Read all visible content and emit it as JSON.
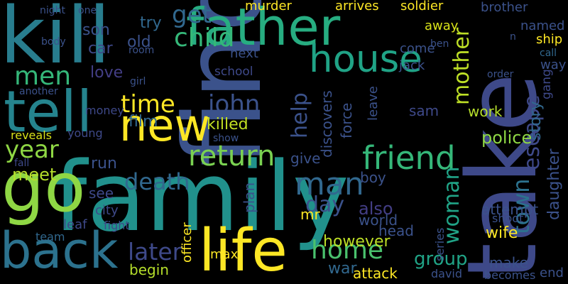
{
  "words": [
    {
      "text": "find",
      "color": "#3b528b"
    },
    {
      "text": "family",
      "color": "#21918c"
    },
    {
      "text": "take",
      "color": "#3e4989"
    },
    {
      "text": "kill",
      "color": "#287d8e"
    },
    {
      "text": "father",
      "color": "#27ad81"
    },
    {
      "text": "tell",
      "color": "#25848e"
    },
    {
      "text": "go",
      "color": "#8fd744"
    },
    {
      "text": "back",
      "color": "#2c728e"
    },
    {
      "text": "life",
      "color": "#fde725"
    },
    {
      "text": "new",
      "color": "#fde725"
    },
    {
      "text": "house",
      "color": "#20a386"
    },
    {
      "text": "child",
      "color": "#35b779"
    },
    {
      "text": "get",
      "color": "#31688e"
    },
    {
      "text": "men",
      "color": "#35b779"
    },
    {
      "text": "friend",
      "color": "#35b779"
    },
    {
      "text": "man",
      "color": "#31688e"
    },
    {
      "text": "home",
      "color": "#4ac16d"
    },
    {
      "text": "return",
      "color": "#7ad151"
    },
    {
      "text": "time",
      "color": "#fde725"
    },
    {
      "text": "john",
      "color": "#3b528b"
    },
    {
      "text": "later",
      "color": "#3e4989"
    },
    {
      "text": "year",
      "color": "#8fd744"
    },
    {
      "text": "death",
      "color": "#31688e"
    },
    {
      "text": "day",
      "color": "#3b528b"
    },
    {
      "text": "woman",
      "color": "#20a386"
    },
    {
      "text": "town",
      "color": "#2c728e"
    },
    {
      "text": "escape",
      "color": "#3e4989"
    },
    {
      "text": "mother",
      "color": "#bddf26"
    },
    {
      "text": "group",
      "color": "#20a386"
    },
    {
      "text": "police",
      "color": "#8fd744"
    },
    {
      "text": "daughter",
      "color": "#3b528b"
    },
    {
      "text": "story",
      "color": "#31688e"
    },
    {
      "text": "attack",
      "color": "#fde725"
    },
    {
      "text": "war",
      "color": "#31688e"
    },
    {
      "text": "also",
      "color": "#433e85"
    },
    {
      "text": "however",
      "color": "#bddf26"
    },
    {
      "text": "film",
      "color": "#31688e"
    },
    {
      "text": "killed",
      "color": "#c2df23"
    },
    {
      "text": "help",
      "color": "#3b528b"
    },
    {
      "text": "meet",
      "color": "#b5de2b"
    },
    {
      "text": "see",
      "color": "#3e4989"
    },
    {
      "text": "run",
      "color": "#3b528b"
    },
    {
      "text": "love",
      "color": "#433e85"
    },
    {
      "text": "son",
      "color": "#3b528b"
    },
    {
      "text": "car",
      "color": "#3e4989"
    },
    {
      "text": "old",
      "color": "#3b528b"
    },
    {
      "text": "try",
      "color": "#31688e"
    },
    {
      "text": "murder",
      "color": "#fde725"
    },
    {
      "text": "arrives",
      "color": "#fde725"
    },
    {
      "text": "soldier",
      "color": "#fde725"
    },
    {
      "text": "brother",
      "color": "#3b528b"
    },
    {
      "text": "named",
      "color": "#3b528b"
    },
    {
      "text": "away",
      "color": "#d8e219"
    },
    {
      "text": "ship",
      "color": "#fde725"
    },
    {
      "text": "call",
      "color": "#31688e"
    },
    {
      "text": "way",
      "color": "#3b528b"
    },
    {
      "text": "gang",
      "color": "#3e4989"
    },
    {
      "text": "come",
      "color": "#3b528b"
    },
    {
      "text": "jack",
      "color": "#3b528b"
    },
    {
      "text": "school",
      "color": "#3e4989"
    },
    {
      "text": "next",
      "color": "#3b528b"
    },
    {
      "text": "leave",
      "color": "#3b528b"
    },
    {
      "text": "sam",
      "color": "#3e4989"
    },
    {
      "text": "work",
      "color": "#b5de2b"
    },
    {
      "text": "force",
      "color": "#3b528b"
    },
    {
      "text": "discovers",
      "color": "#3b528b"
    },
    {
      "text": "give",
      "color": "#3b528b"
    },
    {
      "text": "plan",
      "color": "#3b528b"
    },
    {
      "text": "boy",
      "color": "#3b528b"
    },
    {
      "text": "world",
      "color": "#3b528b"
    },
    {
      "text": "head",
      "color": "#3b528b"
    },
    {
      "text": "attempt",
      "color": "#3b528b"
    },
    {
      "text": "wife",
      "color": "#fde725"
    },
    {
      "text": "make",
      "color": "#3b528b"
    },
    {
      "text": "shoot",
      "color": "#3b528b"
    },
    {
      "text": "series",
      "color": "#3b528b"
    },
    {
      "text": "david",
      "color": "#3b528b"
    },
    {
      "text": "becomes",
      "color": "#3b528b"
    },
    {
      "text": "end",
      "color": "#3b528b"
    },
    {
      "text": "begin",
      "color": "#b5de2b"
    },
    {
      "text": "max",
      "color": "#fde725"
    },
    {
      "text": "officer",
      "color": "#fde725"
    },
    {
      "text": "mr",
      "color": "#fde725"
    },
    {
      "text": "city",
      "color": "#3e4989"
    },
    {
      "text": "fight",
      "color": "#3e4989"
    },
    {
      "text": "leaf",
      "color": "#3e4989"
    },
    {
      "text": "team",
      "color": "#31688e"
    },
    {
      "text": "fall",
      "color": "#3e4989"
    },
    {
      "text": "reveals",
      "color": "#d8e219"
    },
    {
      "text": "young",
      "color": "#3e4989"
    },
    {
      "text": "money",
      "color": "#3e4989"
    },
    {
      "text": "body",
      "color": "#3b528b"
    },
    {
      "text": "night",
      "color": "#3b528b"
    },
    {
      "text": "one",
      "color": "#3b528b"
    },
    {
      "text": "room",
      "color": "#3b528b"
    },
    {
      "text": "girl",
      "color": "#3b528b"
    },
    {
      "text": "another",
      "color": "#3b528b"
    },
    {
      "text": "order",
      "color": "#3b528b"
    },
    {
      "text": "show",
      "color": "#3b528b"
    },
    {
      "text": "ben",
      "color": "#3b528b"
    },
    {
      "text": "n",
      "color": "#3b528b"
    }
  ]
}
